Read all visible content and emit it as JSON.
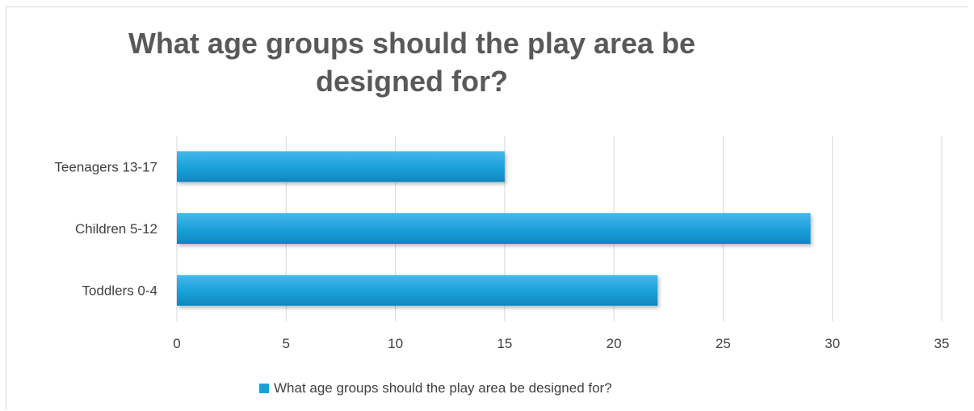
{
  "chart_data": {
    "type": "bar",
    "orientation": "horizontal",
    "title": "What age groups should the play area be designed for?",
    "categories": [
      "Teenagers 13-17",
      "Children 5-12",
      "Toddlers 0-4"
    ],
    "series": [
      {
        "name": "What age groups should the play area be designed for?",
        "values": [
          15,
          29,
          22
        ]
      }
    ],
    "xlim": [
      0,
      35
    ],
    "xticks": [
      "0",
      "5",
      "10",
      "15",
      "20",
      "25",
      "30",
      "35"
    ],
    "grid": true,
    "legend_position": "bottom",
    "colors": {
      "bar": "#1a9fd9",
      "bar_light": "#3db3e8",
      "bar_dark": "#0f86bd",
      "grid": "#d9d9d9",
      "text": "#404040",
      "title": "#595959"
    }
  }
}
